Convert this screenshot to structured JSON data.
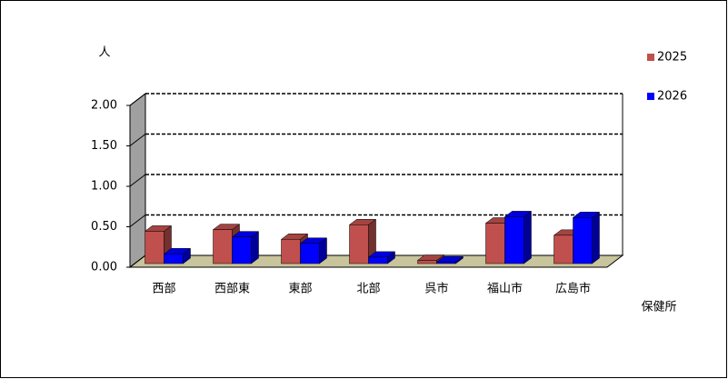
{
  "chart_data": {
    "type": "bar3d",
    "y_label": "人",
    "x_label": "保健所",
    "categories": [
      "西部",
      "西部東",
      "東部",
      "北部",
      "呉市",
      "福山市",
      "広島市"
    ],
    "series": [
      {
        "name": "2025",
        "color": "#c0504d",
        "values": [
          0.4,
          0.42,
          0.3,
          0.48,
          0.04,
          0.5,
          0.35
        ]
      },
      {
        "name": "2026",
        "color": "#0000ff",
        "values": [
          0.12,
          0.33,
          0.25,
          0.08,
          0.02,
          0.58,
          0.57
        ]
      }
    ],
    "ylim": [
      0,
      2
    ],
    "yticks": [
      {
        "value": 0,
        "label": "0.00"
      },
      {
        "value": 0.5,
        "label": "0.50"
      },
      {
        "value": 1,
        "label": "1.00"
      },
      {
        "value": 1.5,
        "label": "1.50"
      },
      {
        "value": 2,
        "label": "2.00"
      }
    ],
    "grid": true,
    "legend": "right"
  }
}
